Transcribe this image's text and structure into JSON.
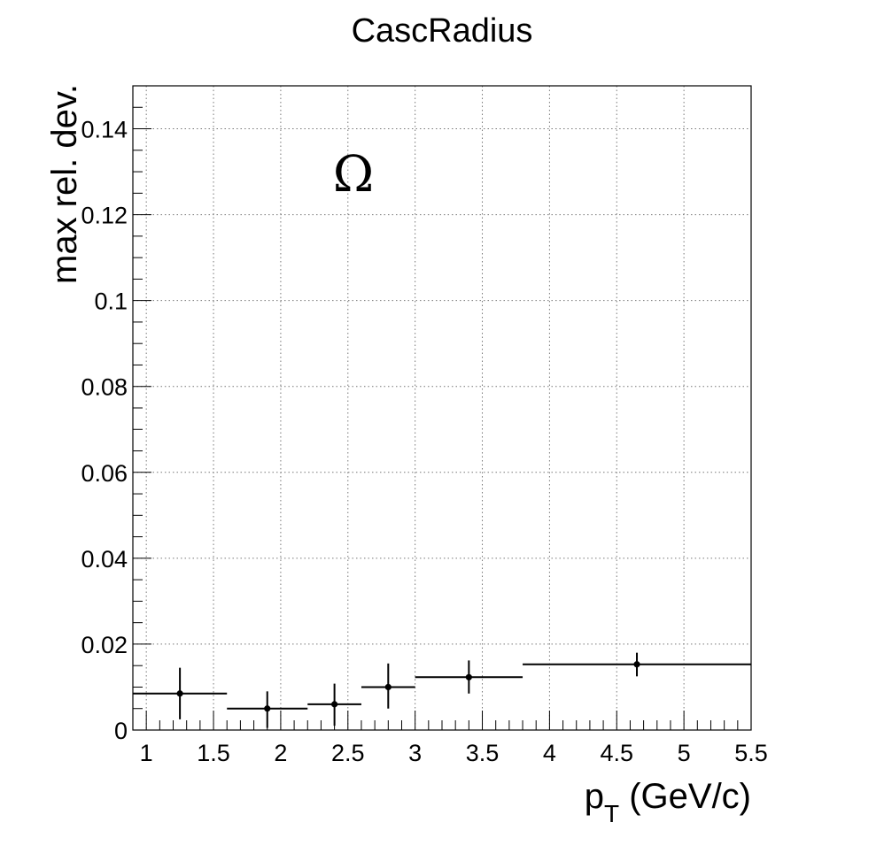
{
  "chart_data": {
    "type": "scatter",
    "title": "CascRadius",
    "xlabel_main": "p",
    "xlabel_sub": "T",
    "xlabel_units": "(GeV/c)",
    "ylabel": "max rel. dev.",
    "annotation": "Ω",
    "xlim": [
      0.9,
      5.5
    ],
    "ylim": [
      0,
      0.15
    ],
    "x_ticks": [
      "1",
      "1.5",
      "2",
      "2.5",
      "3",
      "3.5",
      "4",
      "4.5",
      "5",
      "5.5"
    ],
    "y_ticks": [
      "0",
      "0.02",
      "0.04",
      "0.06",
      "0.08",
      "0.1",
      "0.12",
      "0.14"
    ],
    "grid": true,
    "series": [
      {
        "points": [
          {
            "x": 1.25,
            "xlo": 0.9,
            "xhi": 1.6,
            "y": 0.0085,
            "ylo": 0.0025,
            "yhi": 0.0145
          },
          {
            "x": 1.9,
            "xlo": 1.6,
            "xhi": 2.2,
            "y": 0.005,
            "ylo": 0.0005,
            "yhi": 0.009
          },
          {
            "x": 2.4,
            "xlo": 2.2,
            "xhi": 2.6,
            "y": 0.006,
            "ylo": 0.001,
            "yhi": 0.0108
          },
          {
            "x": 2.8,
            "xlo": 2.6,
            "xhi": 3.0,
            "y": 0.01,
            "ylo": 0.005,
            "yhi": 0.0155
          },
          {
            "x": 3.4,
            "xlo": 3.0,
            "xhi": 3.8,
            "y": 0.0123,
            "ylo": 0.0085,
            "yhi": 0.0162
          },
          {
            "x": 4.65,
            "xlo": 3.8,
            "xhi": 5.5,
            "y": 0.0153,
            "ylo": 0.0125,
            "yhi": 0.018
          }
        ]
      }
    ]
  }
}
